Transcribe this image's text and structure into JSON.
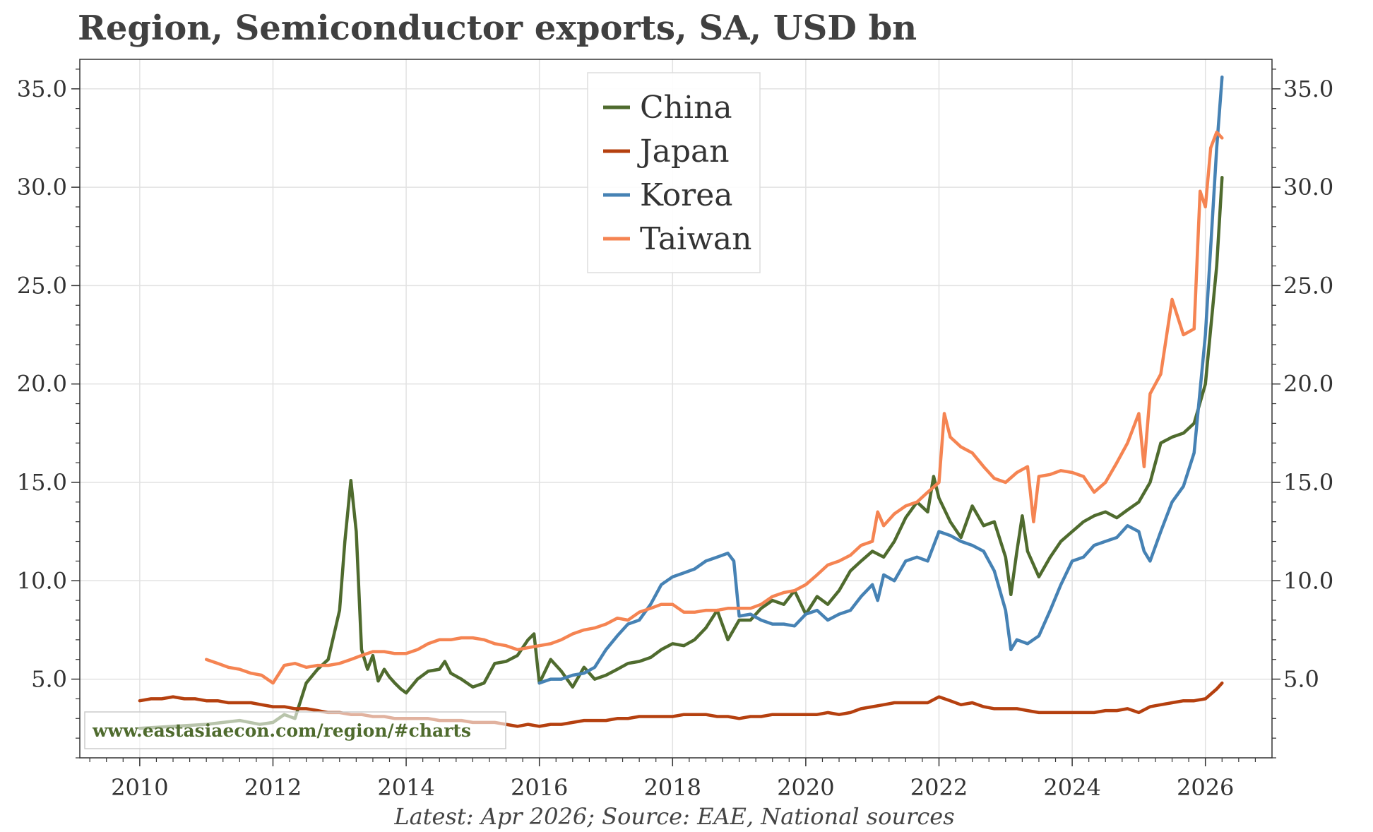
{
  "chart_data": {
    "type": "line",
    "title": "Region, Semiconductor exports, SA, USD bn",
    "xlabel": "",
    "ylabel": "",
    "xlim": [
      2009.1,
      2027.0
    ],
    "ylim": [
      1.0,
      36.5
    ],
    "x_ticks": [
      2010,
      2012,
      2014,
      2016,
      2018,
      2020,
      2022,
      2024,
      2026
    ],
    "x_tick_labels": [
      "2010",
      "2012",
      "2014",
      "2016",
      "2018",
      "2020",
      "2022",
      "2024",
      "2026"
    ],
    "y_ticks": [
      5,
      10,
      15,
      20,
      25,
      30,
      35
    ],
    "y_tick_labels": [
      "5.0",
      "10.0",
      "15.0",
      "20.0",
      "25.0",
      "30.0",
      "35.0"
    ],
    "grid": true,
    "legend_position": "top-center",
    "caption": "Latest: Apr 2026; Source: EAE, National sources",
    "watermark": "www.eastasiaecon.com/region/#charts",
    "series": [
      {
        "name": "China",
        "color": "#4f6b2e",
        "x": [
          2010.0,
          2010.5,
          2011.0,
          2011.5,
          2011.8,
          2012.0,
          2012.17,
          2012.33,
          2012.5,
          2012.67,
          2012.83,
          2013.0,
          2013.08,
          2013.17,
          2013.25,
          2013.33,
          2013.42,
          2013.5,
          2013.58,
          2013.67,
          2013.75,
          2013.83,
          2013.92,
          2014.0,
          2014.17,
          2014.33,
          2014.5,
          2014.58,
          2014.67,
          2014.83,
          2015.0,
          2015.17,
          2015.33,
          2015.5,
          2015.67,
          2015.83,
          2015.92,
          2016.0,
          2016.17,
          2016.33,
          2016.5,
          2016.67,
          2016.83,
          2017.0,
          2017.17,
          2017.33,
          2017.5,
          2017.67,
          2017.83,
          2018.0,
          2018.17,
          2018.33,
          2018.5,
          2018.67,
          2018.83,
          2019.0,
          2019.17,
          2019.33,
          2019.5,
          2019.67,
          2019.83,
          2020.0,
          2020.17,
          2020.33,
          2020.5,
          2020.67,
          2020.83,
          2021.0,
          2021.17,
          2021.33,
          2021.5,
          2021.67,
          2021.83,
          2021.92,
          2022.0,
          2022.17,
          2022.33,
          2022.5,
          2022.67,
          2022.83,
          2023.0,
          2023.08,
          2023.17,
          2023.25,
          2023.33,
          2023.5,
          2023.67,
          2023.83,
          2024.0,
          2024.17,
          2024.33,
          2024.5,
          2024.67,
          2024.83,
          2025.0,
          2025.17,
          2025.33,
          2025.5,
          2025.67,
          2025.83,
          2026.0,
          2026.17,
          2026.25
        ],
        "values": [
          2.5,
          2.6,
          2.7,
          2.9,
          2.7,
          2.8,
          3.2,
          3.0,
          4.8,
          5.5,
          6.0,
          8.5,
          12.0,
          15.1,
          12.5,
          6.5,
          5.5,
          6.2,
          4.9,
          5.5,
          5.1,
          4.8,
          4.5,
          4.3,
          5.0,
          5.4,
          5.5,
          5.9,
          5.3,
          5.0,
          4.6,
          4.8,
          5.8,
          5.9,
          6.2,
          7.0,
          7.3,
          4.8,
          6.0,
          5.4,
          4.6,
          5.6,
          5.0,
          5.2,
          5.5,
          5.8,
          5.9,
          6.1,
          6.5,
          6.8,
          6.7,
          7.0,
          7.6,
          8.5,
          7.0,
          8.0,
          8.0,
          8.6,
          9.0,
          8.8,
          9.5,
          8.3,
          9.2,
          8.8,
          9.5,
          10.5,
          11.0,
          11.5,
          11.2,
          12.0,
          13.2,
          14.0,
          13.5,
          15.3,
          14.2,
          13.0,
          12.2,
          13.8,
          12.8,
          13.0,
          11.2,
          9.3,
          11.5,
          13.3,
          11.5,
          10.2,
          11.2,
          12.0,
          12.5,
          13.0,
          13.3,
          13.5,
          13.2,
          13.6,
          14.0,
          15.0,
          17.0,
          17.3,
          17.5,
          18.0,
          20.0,
          26.0,
          30.5
        ]
      },
      {
        "name": "Japan",
        "color": "#b5400f",
        "x": [
          2010.0,
          2010.17,
          2010.33,
          2010.5,
          2010.67,
          2010.83,
          2011.0,
          2011.17,
          2011.33,
          2011.5,
          2011.67,
          2011.83,
          2012.0,
          2012.17,
          2012.33,
          2012.5,
          2012.67,
          2012.83,
          2013.0,
          2013.17,
          2013.33,
          2013.5,
          2013.67,
          2013.83,
          2014.0,
          2014.17,
          2014.33,
          2014.5,
          2014.67,
          2014.83,
          2015.0,
          2015.17,
          2015.33,
          2015.5,
          2015.67,
          2015.83,
          2016.0,
          2016.17,
          2016.33,
          2016.5,
          2016.67,
          2016.83,
          2017.0,
          2017.17,
          2017.33,
          2017.5,
          2017.67,
          2017.83,
          2018.0,
          2018.17,
          2018.33,
          2018.5,
          2018.67,
          2018.83,
          2019.0,
          2019.17,
          2019.33,
          2019.5,
          2019.67,
          2019.83,
          2020.0,
          2020.17,
          2020.33,
          2020.5,
          2020.67,
          2020.83,
          2021.0,
          2021.17,
          2021.33,
          2021.5,
          2021.67,
          2021.83,
          2022.0,
          2022.17,
          2022.33,
          2022.5,
          2022.67,
          2022.83,
          2023.0,
          2023.17,
          2023.33,
          2023.5,
          2023.67,
          2023.83,
          2024.0,
          2024.17,
          2024.33,
          2024.5,
          2024.67,
          2024.83,
          2025.0,
          2025.17,
          2025.33,
          2025.5,
          2025.67,
          2025.83,
          2026.0,
          2026.17,
          2026.25
        ],
        "values": [
          3.9,
          4.0,
          4.0,
          4.1,
          4.0,
          4.0,
          3.9,
          3.9,
          3.8,
          3.8,
          3.8,
          3.7,
          3.6,
          3.6,
          3.5,
          3.5,
          3.4,
          3.3,
          3.3,
          3.2,
          3.2,
          3.1,
          3.1,
          3.0,
          3.0,
          3.0,
          3.0,
          2.9,
          2.9,
          2.9,
          2.8,
          2.8,
          2.8,
          2.7,
          2.6,
          2.7,
          2.6,
          2.7,
          2.7,
          2.8,
          2.9,
          2.9,
          2.9,
          3.0,
          3.0,
          3.1,
          3.1,
          3.1,
          3.1,
          3.2,
          3.2,
          3.2,
          3.1,
          3.1,
          3.0,
          3.1,
          3.1,
          3.2,
          3.2,
          3.2,
          3.2,
          3.2,
          3.3,
          3.2,
          3.3,
          3.5,
          3.6,
          3.7,
          3.8,
          3.8,
          3.8,
          3.8,
          4.1,
          3.9,
          3.7,
          3.8,
          3.6,
          3.5,
          3.5,
          3.5,
          3.4,
          3.3,
          3.3,
          3.3,
          3.3,
          3.3,
          3.3,
          3.4,
          3.4,
          3.5,
          3.3,
          3.6,
          3.7,
          3.8,
          3.9,
          3.9,
          4.0,
          4.5,
          4.8
        ]
      },
      {
        "name": "Korea",
        "color": "#4682b4",
        "x": [
          2016.0,
          2016.17,
          2016.33,
          2016.5,
          2016.67,
          2016.83,
          2017.0,
          2017.17,
          2017.33,
          2017.5,
          2017.67,
          2017.83,
          2018.0,
          2018.17,
          2018.33,
          2018.5,
          2018.67,
          2018.83,
          2018.92,
          2019.0,
          2019.17,
          2019.33,
          2019.5,
          2019.67,
          2019.83,
          2020.0,
          2020.17,
          2020.33,
          2020.5,
          2020.67,
          2020.83,
          2021.0,
          2021.08,
          2021.17,
          2021.33,
          2021.5,
          2021.67,
          2021.83,
          2022.0,
          2022.17,
          2022.33,
          2022.5,
          2022.67,
          2022.83,
          2023.0,
          2023.08,
          2023.17,
          2023.33,
          2023.5,
          2023.67,
          2023.83,
          2024.0,
          2024.17,
          2024.33,
          2024.5,
          2024.67,
          2024.83,
          2025.0,
          2025.08,
          2025.17,
          2025.33,
          2025.5,
          2025.67,
          2025.83,
          2026.0,
          2026.17,
          2026.25
        ],
        "values": [
          4.8,
          5.0,
          5.0,
          5.2,
          5.3,
          5.6,
          6.5,
          7.2,
          7.8,
          8.0,
          8.8,
          9.8,
          10.2,
          10.4,
          10.6,
          11.0,
          11.2,
          11.4,
          11.0,
          8.2,
          8.3,
          8.0,
          7.8,
          7.8,
          7.7,
          8.3,
          8.5,
          8.0,
          8.3,
          8.5,
          9.2,
          9.8,
          9.0,
          10.3,
          10.0,
          11.0,
          11.2,
          11.0,
          12.5,
          12.3,
          12.0,
          11.8,
          11.5,
          10.5,
          8.5,
          6.5,
          7.0,
          6.8,
          7.2,
          8.5,
          9.8,
          11.0,
          11.2,
          11.8,
          12.0,
          12.2,
          12.8,
          12.5,
          11.5,
          11.0,
          12.5,
          14.0,
          14.8,
          16.5,
          22.5,
          32.0,
          35.6
        ]
      },
      {
        "name": "Taiwan",
        "color": "#f58452",
        "x": [
          2011.0,
          2011.17,
          2011.33,
          2011.5,
          2011.67,
          2011.83,
          2012.0,
          2012.17,
          2012.33,
          2012.5,
          2012.67,
          2012.83,
          2013.0,
          2013.17,
          2013.33,
          2013.5,
          2013.67,
          2013.83,
          2014.0,
          2014.17,
          2014.33,
          2014.5,
          2014.67,
          2014.83,
          2015.0,
          2015.17,
          2015.33,
          2015.5,
          2015.67,
          2015.83,
          2016.0,
          2016.17,
          2016.33,
          2016.5,
          2016.67,
          2016.83,
          2017.0,
          2017.17,
          2017.33,
          2017.5,
          2017.67,
          2017.83,
          2018.0,
          2018.17,
          2018.33,
          2018.5,
          2018.67,
          2018.83,
          2019.0,
          2019.17,
          2019.33,
          2019.5,
          2019.67,
          2019.83,
          2020.0,
          2020.17,
          2020.33,
          2020.5,
          2020.67,
          2020.83,
          2021.0,
          2021.08,
          2021.17,
          2021.33,
          2021.5,
          2021.67,
          2021.83,
          2022.0,
          2022.08,
          2022.17,
          2022.33,
          2022.5,
          2022.67,
          2022.83,
          2023.0,
          2023.17,
          2023.33,
          2023.42,
          2023.5,
          2023.67,
          2023.83,
          2024.0,
          2024.17,
          2024.33,
          2024.5,
          2024.67,
          2024.83,
          2025.0,
          2025.08,
          2025.17,
          2025.33,
          2025.5,
          2025.67,
          2025.83,
          2025.92,
          2026.0,
          2026.08,
          2026.17,
          2026.25
        ],
        "values": [
          6.0,
          5.8,
          5.6,
          5.5,
          5.3,
          5.2,
          4.8,
          5.7,
          5.8,
          5.6,
          5.7,
          5.7,
          5.8,
          6.0,
          6.2,
          6.4,
          6.4,
          6.3,
          6.3,
          6.5,
          6.8,
          7.0,
          7.0,
          7.1,
          7.1,
          7.0,
          6.8,
          6.7,
          6.5,
          6.6,
          6.7,
          6.8,
          7.0,
          7.3,
          7.5,
          7.6,
          7.8,
          8.1,
          8.0,
          8.4,
          8.6,
          8.8,
          8.8,
          8.4,
          8.4,
          8.5,
          8.5,
          8.6,
          8.6,
          8.6,
          8.8,
          9.2,
          9.4,
          9.5,
          9.8,
          10.3,
          10.8,
          11.0,
          11.3,
          11.8,
          12.0,
          13.5,
          12.8,
          13.4,
          13.8,
          14.0,
          14.5,
          15.0,
          18.5,
          17.3,
          16.8,
          16.5,
          15.8,
          15.2,
          15.0,
          15.5,
          15.8,
          13.0,
          15.3,
          15.4,
          15.6,
          15.5,
          15.3,
          14.5,
          15.0,
          16.0,
          17.0,
          18.5,
          15.8,
          19.5,
          20.5,
          24.3,
          22.5,
          22.8,
          29.8,
          29.0,
          32.0,
          32.8,
          32.5
        ]
      }
    ]
  }
}
